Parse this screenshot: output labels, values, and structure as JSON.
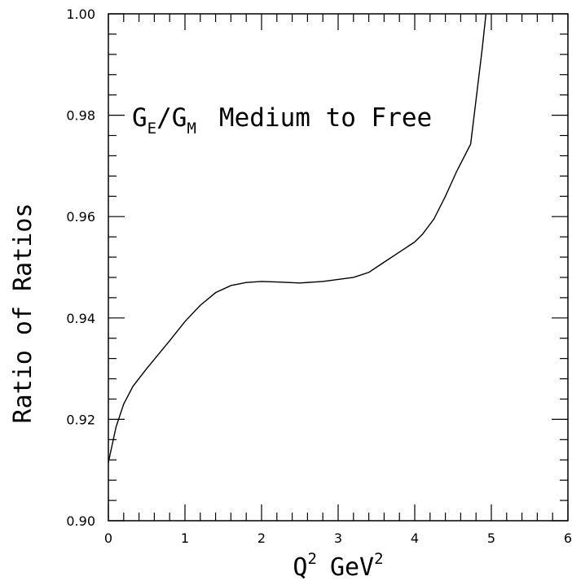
{
  "chart_data": {
    "type": "line",
    "title": "",
    "annotation": {
      "g1": "G",
      "sub1": "E",
      "slash": "/",
      "g2": "G",
      "sub2": "M",
      "rest": "Medium to Free"
    },
    "xlabel": {
      "main": "Q",
      "sup1": "2",
      "unit": "GeV",
      "sup2": "2"
    },
    "ylabel": "Ratio of Ratios",
    "xlim": [
      0,
      6
    ],
    "ylim": [
      0.9,
      1.0
    ],
    "x_ticks": [
      0,
      1,
      2,
      3,
      4,
      5,
      6
    ],
    "x_tick_labels": [
      "0",
      "1",
      "2",
      "3",
      "4",
      "5",
      "6"
    ],
    "y_ticks": [
      0.9,
      0.92,
      0.94,
      0.96,
      0.98,
      1.0
    ],
    "y_tick_labels": [
      "0.90",
      "0.92",
      "0.94",
      "0.96",
      "0.98",
      "1.00"
    ],
    "x_minor_step": 0.2,
    "y_minor_step": 0.004,
    "grid": false,
    "series": [
      {
        "x": [
          0.0,
          0.1,
          0.2,
          0.32,
          0.5,
          0.8,
          1.0,
          1.2,
          1.4,
          1.6,
          1.8,
          2.0,
          2.2,
          2.5,
          2.8,
          3.0,
          3.2,
          3.4,
          3.6,
          3.8,
          4.0,
          4.1,
          4.25,
          4.4,
          4.55,
          4.73,
          4.8,
          4.88,
          4.93
        ],
        "y": [
          0.9115,
          0.9185,
          0.923,
          0.9265,
          0.93,
          0.9355,
          0.9393,
          0.9425,
          0.945,
          0.9464,
          0.947,
          0.9472,
          0.9471,
          0.9469,
          0.9472,
          0.9476,
          0.948,
          0.949,
          0.951,
          0.953,
          0.955,
          0.9565,
          0.9595,
          0.964,
          0.969,
          0.9743,
          0.983,
          0.993,
          1.0
        ]
      }
    ]
  }
}
